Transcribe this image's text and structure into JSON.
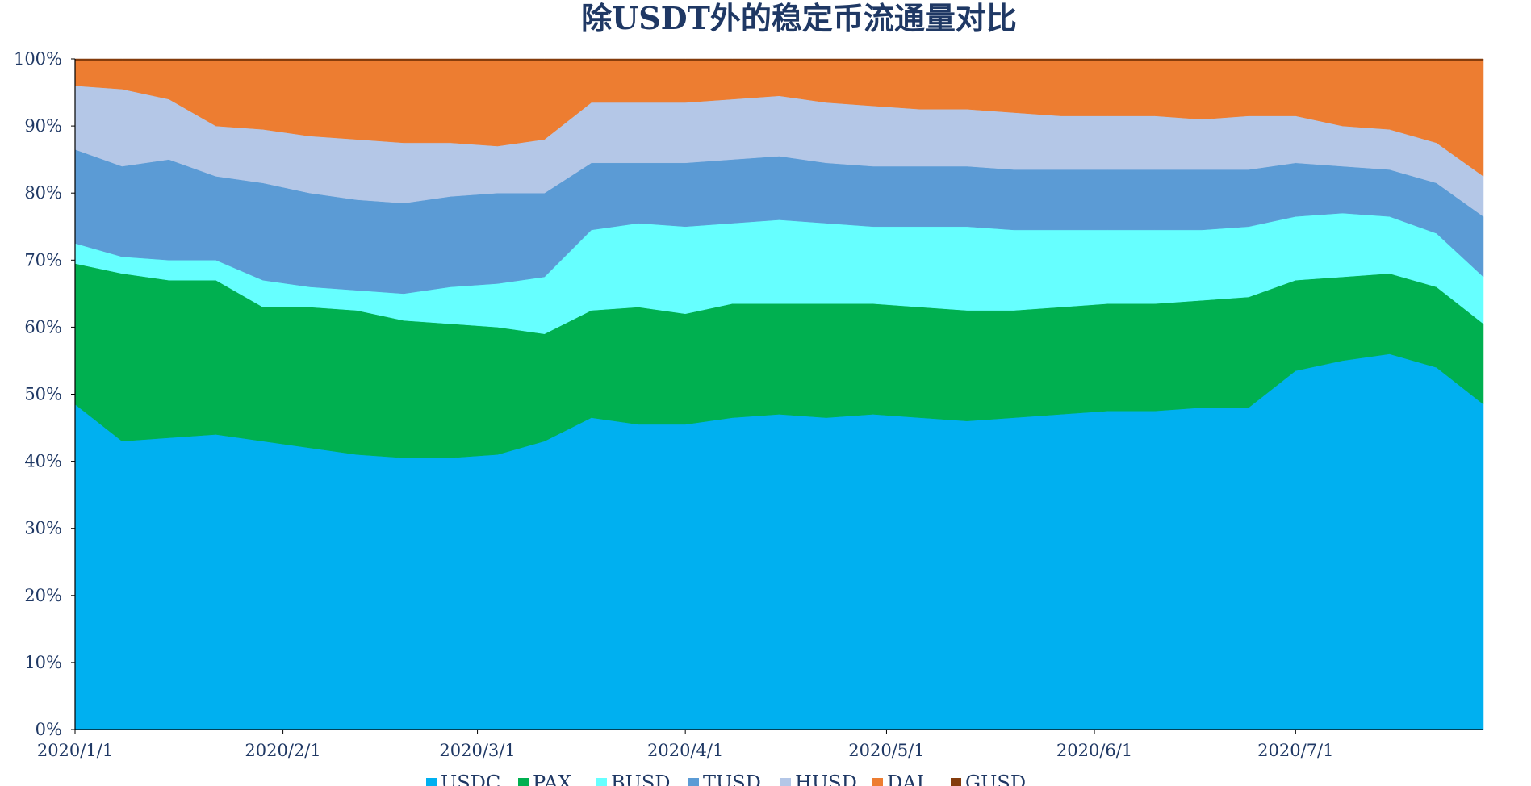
{
  "chart_data": {
    "type": "area",
    "stacked": "percent",
    "title": "除USDT外的稳定币流通量对比",
    "xlabel": "",
    "ylabel": "",
    "ylim": [
      0,
      100
    ],
    "grid": false,
    "legend": "bottom",
    "y_ticks": [
      "0%",
      "10%",
      "20%",
      "30%",
      "40%",
      "50%",
      "60%",
      "70%",
      "80%",
      "90%",
      "100%"
    ],
    "x_ticks": [
      "2020/1/1",
      "2020/2/1",
      "2020/3/1",
      "2020/4/1",
      "2020/5/1",
      "2020/6/1",
      "2020/7/1"
    ],
    "x": [
      "2020-01-01",
      "2020-01-08",
      "2020-01-15",
      "2020-01-22",
      "2020-01-29",
      "2020-02-05",
      "2020-02-12",
      "2020-02-19",
      "2020-02-26",
      "2020-03-04",
      "2020-03-11",
      "2020-03-18",
      "2020-03-25",
      "2020-04-01",
      "2020-04-08",
      "2020-04-15",
      "2020-04-22",
      "2020-04-29",
      "2020-05-06",
      "2020-05-13",
      "2020-05-20",
      "2020-05-27",
      "2020-06-03",
      "2020-06-10",
      "2020-06-17",
      "2020-06-24",
      "2020-07-01",
      "2020-07-08",
      "2020-07-15",
      "2020-07-22",
      "2020-07-29"
    ],
    "series": [
      {
        "name": "USDC",
        "values": [
          48.5,
          43,
          43.5,
          44,
          43,
          42,
          41,
          40.5,
          40.5,
          41,
          43,
          46.5,
          45.5,
          45.5,
          46.5,
          47,
          46.5,
          47,
          46.5,
          46,
          46.5,
          47,
          47.5,
          47.5,
          48,
          48,
          53.5,
          55,
          56,
          54,
          48.5
        ]
      },
      {
        "name": "PAX",
        "values": [
          21,
          25,
          23.5,
          23,
          20,
          21,
          21.5,
          20.5,
          20,
          19,
          16,
          16,
          17.5,
          16.5,
          17,
          16.5,
          17,
          16.5,
          16.5,
          16.5,
          16,
          16,
          16,
          16,
          16,
          16.5,
          13.5,
          12.5,
          12,
          12,
          12
        ]
      },
      {
        "name": "BUSD",
        "values": [
          3,
          2.5,
          3,
          3,
          4,
          3,
          3,
          4,
          5.5,
          6.5,
          8.5,
          12,
          12.5,
          13,
          12,
          12.5,
          12,
          11.5,
          12,
          12.5,
          12,
          11.5,
          11,
          11,
          10.5,
          10.5,
          9.5,
          9.5,
          8.5,
          8,
          7
        ]
      },
      {
        "name": "TUSD",
        "values": [
          14,
          13.5,
          15,
          12.5,
          14.5,
          14,
          13.5,
          13.5,
          13.5,
          13.5,
          12.5,
          10,
          9,
          9.5,
          9.5,
          9.5,
          9,
          9,
          9,
          9,
          9,
          9,
          9,
          9,
          9,
          8.5,
          8,
          7,
          7,
          7.5,
          9
        ]
      },
      {
        "name": "HUSD",
        "values": [
          9.5,
          11.5,
          9,
          7.5,
          8,
          8.5,
          9,
          9,
          8,
          7,
          8,
          9,
          9,
          9,
          9,
          9,
          9,
          9,
          8.5,
          8.5,
          8.5,
          8,
          8,
          8,
          7.5,
          8,
          7,
          6,
          6,
          6,
          6
        ]
      },
      {
        "name": "DAI",
        "values": [
          3.8,
          4.3,
          5.8,
          9.8,
          10.3,
          11.3,
          11.8,
          12.3,
          12.3,
          12.8,
          11.8,
          6.3,
          6.3,
          6.3,
          5.8,
          5.3,
          6.3,
          6.8,
          7.3,
          7.3,
          7.8,
          8.3,
          8.3,
          8.3,
          8.8,
          8.3,
          8.3,
          9.8,
          10.3,
          12.3,
          17.3
        ]
      },
      {
        "name": "GUSD",
        "values": [
          0.2,
          0.2,
          0.2,
          0.2,
          0.2,
          0.2,
          0.2,
          0.2,
          0.2,
          0.2,
          0.2,
          0.2,
          0.2,
          0.2,
          0.2,
          0.2,
          0.2,
          0.2,
          0.2,
          0.2,
          0.2,
          0.2,
          0.2,
          0.2,
          0.2,
          0.2,
          0.2,
          0.2,
          0.2,
          0.2,
          0.2
        ]
      }
    ],
    "colors": [
      "#00b0f0",
      "#00b050",
      "#66ffff",
      "#5b9bd5",
      "#b4c7e7",
      "#ed7d31",
      "#843c0c"
    ],
    "axis_color": "#000000",
    "text_color": "#1f3864"
  }
}
